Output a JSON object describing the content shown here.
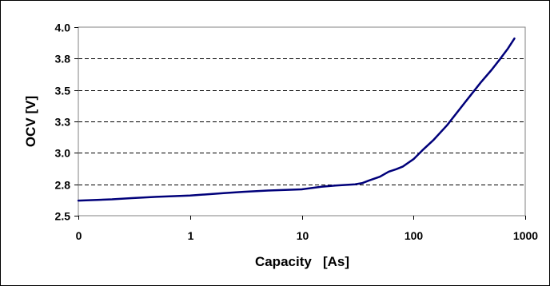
{
  "chart_data": {
    "type": "line",
    "xlabel": "Capacity   [As]",
    "ylabel": "OCV   [V]",
    "x_scale": "log",
    "x_ticks": [
      "0",
      "1",
      "10",
      "100",
      "1000"
    ],
    "x_tick_values": [
      0.1,
      1,
      10,
      100,
      1000
    ],
    "y_ticks": [
      "2.5",
      "2.8",
      "3.0",
      "3.3",
      "3.5",
      "3.8",
      "4.0"
    ],
    "y_tick_values": [
      2.5,
      2.75,
      3.0,
      3.25,
      3.5,
      3.75,
      4.0
    ],
    "ylim": [
      2.5,
      4.0
    ],
    "xlim": [
      0.1,
      1000
    ],
    "grid": "horizontal dashed",
    "series": [
      {
        "color": "#00007a",
        "x": [
          0.1,
          0.2,
          0.3,
          0.5,
          1,
          2,
          3,
          5,
          10,
          15,
          20,
          30,
          35,
          40,
          50,
          60,
          70,
          80,
          100,
          120,
          150,
          200,
          300,
          400,
          500,
          600,
          700,
          800
        ],
        "y": [
          2.62,
          2.63,
          2.64,
          2.65,
          2.66,
          2.68,
          2.69,
          2.7,
          2.71,
          2.73,
          2.74,
          2.75,
          2.76,
          2.78,
          2.81,
          2.85,
          2.87,
          2.89,
          2.95,
          3.02,
          3.1,
          3.22,
          3.42,
          3.56,
          3.66,
          3.75,
          3.83,
          3.91
        ]
      }
    ]
  }
}
